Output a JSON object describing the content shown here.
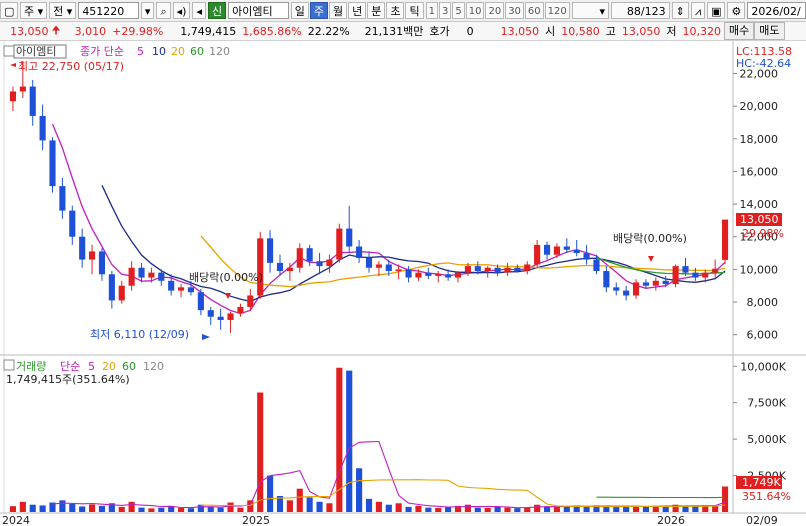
{
  "toolbar": {
    "market_type": "주",
    "market_scope": "전",
    "stock_code": "451220",
    "stock_tag": "신",
    "stock_name": "아이엠티",
    "periods": [
      "일",
      "주",
      "월",
      "년",
      "분",
      "초",
      "틱"
    ],
    "active_period": "주",
    "intervals": [
      "1",
      "3",
      "5",
      "10",
      "20",
      "30",
      "60",
      "120"
    ],
    "page_count": "88/123",
    "date": "2026/02/"
  },
  "info": {
    "price": "13,050",
    "change": "3,010",
    "change_rate": "+29.98%",
    "volume": "1,749,415",
    "volume_rate": "1,685.86%",
    "turnover": "22.22%",
    "amount": "21,131백만",
    "quote_label": "호가",
    "quote_value": "0",
    "quote_price": "13,050",
    "open_label": "시",
    "open_value": "10,580",
    "high_label": "고",
    "high_value": "13,050",
    "low_label": "저",
    "low_value": "10,320",
    "buy_label": "매수",
    "sell_label": "매도"
  },
  "price_panel": {
    "name_label": "아이엠티",
    "ma_label": "종가 단순",
    "ma_periods": [
      "5",
      "10",
      "20",
      "60",
      "120"
    ],
    "lc_label": "LC:113.58",
    "hc_label": "HC:-42.64",
    "high_note": "최고 22,750 (05/17)",
    "low_note": "최저 6,110 (12/09)",
    "dividend_note": "배당락(0.00%)",
    "current_price_badge": "13,050",
    "current_change_badge": "29.98%",
    "y_ticks": [
      "22,000",
      "20,000",
      "18,000",
      "16,000",
      "14,000",
      "12,000",
      "10,000",
      "8,000",
      "6,000"
    ]
  },
  "volume_panel": {
    "name_label": "거래량",
    "ma_label": "단순",
    "ma_periods": [
      "5",
      "20",
      "60",
      "120"
    ],
    "value_note": "1,749,415주(351.64%)",
    "current_volume_badge": "1,749K",
    "current_rate_badge": "351.64%",
    "y_ticks": [
      "10,000K",
      "7,500K",
      "5,000K",
      "2,500K"
    ]
  },
  "x_axis": {
    "labels": [
      "2024",
      "2025",
      "2026"
    ],
    "current_label": "02/09"
  },
  "colors": {
    "up": "#e02020",
    "down": "#1e50d8",
    "ma5": "#c020c0",
    "ma10": "#1c2a8c",
    "ma20": "#e8a200",
    "ma60": "#2a9a2a",
    "ma120": "#888888"
  },
  "chart_data": {
    "type": "candlestick",
    "period": "weekly",
    "candles": [
      {
        "o": 20300,
        "h": 21200,
        "l": 19700,
        "c": 20900
      },
      {
        "o": 20900,
        "h": 22750,
        "l": 20500,
        "c": 21200
      },
      {
        "o": 21200,
        "h": 21600,
        "l": 18800,
        "c": 19400
      },
      {
        "o": 19400,
        "h": 20100,
        "l": 17300,
        "c": 17900
      },
      {
        "o": 17900,
        "h": 18100,
        "l": 14700,
        "c": 15100
      },
      {
        "o": 15100,
        "h": 15600,
        "l": 13100,
        "c": 13600
      },
      {
        "o": 13600,
        "h": 13900,
        "l": 11500,
        "c": 12000
      },
      {
        "o": 12000,
        "h": 12500,
        "l": 10100,
        "c": 10600
      },
      {
        "o": 10600,
        "h": 11500,
        "l": 9700,
        "c": 11100
      },
      {
        "o": 11100,
        "h": 11300,
        "l": 9300,
        "c": 9700
      },
      {
        "o": 9700,
        "h": 9900,
        "l": 7600,
        "c": 8100
      },
      {
        "o": 8100,
        "h": 9300,
        "l": 7900,
        "c": 9000
      },
      {
        "o": 9000,
        "h": 10500,
        "l": 8700,
        "c": 10100
      },
      {
        "o": 10100,
        "h": 10400,
        "l": 9200,
        "c": 9500
      },
      {
        "o": 9500,
        "h": 10100,
        "l": 9200,
        "c": 9800
      },
      {
        "o": 9800,
        "h": 10000,
        "l": 9000,
        "c": 9300
      },
      {
        "o": 9300,
        "h": 9700,
        "l": 8400,
        "c": 8700
      },
      {
        "o": 8700,
        "h": 9100,
        "l": 8300,
        "c": 8900
      },
      {
        "o": 8900,
        "h": 9300,
        "l": 8400,
        "c": 8600
      },
      {
        "o": 8600,
        "h": 8800,
        "l": 7200,
        "c": 7500
      },
      {
        "o": 7500,
        "h": 7700,
        "l": 6600,
        "c": 7100
      },
      {
        "o": 7100,
        "h": 7600,
        "l": 6300,
        "c": 6900
      },
      {
        "o": 6900,
        "h": 7400,
        "l": 6110,
        "c": 7300
      },
      {
        "o": 7300,
        "h": 7900,
        "l": 7100,
        "c": 7700
      },
      {
        "o": 7700,
        "h": 8800,
        "l": 7500,
        "c": 8400
      },
      {
        "o": 8400,
        "h": 12300,
        "l": 8200,
        "c": 11900
      },
      {
        "o": 11900,
        "h": 12400,
        "l": 9800,
        "c": 10400
      },
      {
        "o": 10400,
        "h": 10900,
        "l": 9600,
        "c": 9900
      },
      {
        "o": 9900,
        "h": 10400,
        "l": 9300,
        "c": 10100
      },
      {
        "o": 10100,
        "h": 11600,
        "l": 9800,
        "c": 11300
      },
      {
        "o": 11300,
        "h": 11500,
        "l": 10200,
        "c": 10500
      },
      {
        "o": 10500,
        "h": 11000,
        "l": 9700,
        "c": 10200
      },
      {
        "o": 10200,
        "h": 10900,
        "l": 9800,
        "c": 10600
      },
      {
        "o": 10600,
        "h": 12800,
        "l": 10400,
        "c": 12500
      },
      {
        "o": 12500,
        "h": 13900,
        "l": 11000,
        "c": 11400
      },
      {
        "o": 11400,
        "h": 11800,
        "l": 10400,
        "c": 10700
      },
      {
        "o": 10700,
        "h": 11100,
        "l": 9800,
        "c": 10100
      },
      {
        "o": 10100,
        "h": 10500,
        "l": 9600,
        "c": 10300
      },
      {
        "o": 10300,
        "h": 10600,
        "l": 9600,
        "c": 9900
      },
      {
        "o": 9900,
        "h": 10300,
        "l": 9400,
        "c": 10000
      },
      {
        "o": 10000,
        "h": 10200,
        "l": 9200,
        "c": 9500
      },
      {
        "o": 9500,
        "h": 10000,
        "l": 9300,
        "c": 9800
      },
      {
        "o": 9800,
        "h": 10100,
        "l": 9400,
        "c": 9600
      },
      {
        "o": 9600,
        "h": 9900,
        "l": 9200,
        "c": 9700
      },
      {
        "o": 9700,
        "h": 10000,
        "l": 9300,
        "c": 9500
      },
      {
        "o": 9500,
        "h": 9900,
        "l": 9200,
        "c": 9800
      },
      {
        "o": 9800,
        "h": 10400,
        "l": 9600,
        "c": 10200
      },
      {
        "o": 10200,
        "h": 10500,
        "l": 9700,
        "c": 9900
      },
      {
        "o": 9900,
        "h": 10200,
        "l": 9500,
        "c": 10100
      },
      {
        "o": 10100,
        "h": 10300,
        "l": 9600,
        "c": 9800
      },
      {
        "o": 9800,
        "h": 10400,
        "l": 9600,
        "c": 10100
      },
      {
        "o": 10100,
        "h": 10300,
        "l": 9800,
        "c": 9900
      },
      {
        "o": 9900,
        "h": 10500,
        "l": 9700,
        "c": 10300
      },
      {
        "o": 10300,
        "h": 11800,
        "l": 10100,
        "c": 11500
      },
      {
        "o": 11500,
        "h": 11700,
        "l": 10600,
        "c": 10900
      },
      {
        "o": 10900,
        "h": 11600,
        "l": 10700,
        "c": 11400
      },
      {
        "o": 11400,
        "h": 11900,
        "l": 11000,
        "c": 11200
      },
      {
        "o": 11200,
        "h": 11800,
        "l": 10800,
        "c": 11000
      },
      {
        "o": 11000,
        "h": 11500,
        "l": 10300,
        "c": 10600
      },
      {
        "o": 10600,
        "h": 10900,
        "l": 9700,
        "c": 9900
      },
      {
        "o": 9900,
        "h": 10200,
        "l": 8600,
        "c": 8900
      },
      {
        "o": 8900,
        "h": 9200,
        "l": 8400,
        "c": 8700
      },
      {
        "o": 8700,
        "h": 9000,
        "l": 8100,
        "c": 8400
      },
      {
        "o": 8400,
        "h": 9400,
        "l": 8200,
        "c": 9200
      },
      {
        "o": 9200,
        "h": 9400,
        "l": 8800,
        "c": 9000
      },
      {
        "o": 9000,
        "h": 9500,
        "l": 8700,
        "c": 9300
      },
      {
        "o": 9300,
        "h": 9600,
        "l": 8900,
        "c": 9100
      },
      {
        "o": 9100,
        "h": 10300,
        "l": 8900,
        "c": 10200
      },
      {
        "o": 10200,
        "h": 10700,
        "l": 9600,
        "c": 9800
      },
      {
        "o": 9800,
        "h": 10100,
        "l": 9300,
        "c": 9500
      },
      {
        "o": 9500,
        "h": 10000,
        "l": 9200,
        "c": 9800
      },
      {
        "o": 9800,
        "h": 10600,
        "l": 9500,
        "c": 10040
      },
      {
        "o": 10580,
        "h": 13050,
        "l": 10320,
        "c": 13050
      }
    ],
    "volume_k": [
      400,
      700,
      500,
      450,
      650,
      800,
      550,
      380,
      520,
      420,
      600,
      350,
      700,
      300,
      250,
      300,
      420,
      280,
      260,
      500,
      350,
      300,
      650,
      300,
      800,
      8200,
      2500,
      1100,
      800,
      1600,
      1000,
      700,
      600,
      9900,
      9700,
      3000,
      900,
      700,
      500,
      600,
      350,
      420,
      300,
      280,
      350,
      420,
      500,
      300,
      280,
      350,
      300,
      260,
      330,
      500,
      400,
      350,
      380,
      420,
      400,
      450,
      380,
      350,
      420,
      400,
      380,
      420,
      400,
      500,
      380,
      420,
      450,
      400,
      1749
    ],
    "y_range": [
      5000,
      23500
    ],
    "volume_range_k": [
      0,
      10500
    ]
  }
}
